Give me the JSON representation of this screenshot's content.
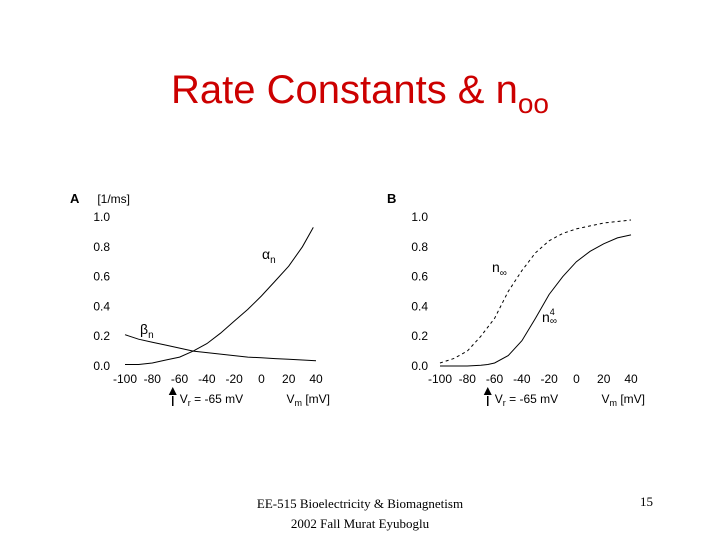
{
  "slide": {
    "title_main": "Rate Constants & n",
    "title_sub": "oo",
    "footer": "EE-515 Bioelectricity & Biomagnetism 2002 Fall Murat Eyuboglu",
    "page_number": "15"
  },
  "chart_data": [
    {
      "type": "line",
      "panel_label": "A",
      "ylabel": "[1/ms]",
      "xlabel_symbol": "V",
      "xlabel_subscript": "m",
      "xlabel_unit": "[mV]",
      "annotation_symbol": "V",
      "annotation_subscript": "r",
      "annotation_value": "= -65 mV",
      "annotation_x": -65,
      "xlim": [
        -100,
        40
      ],
      "ylim": [
        0,
        1.0
      ],
      "x_ticks": [
        -100,
        -80,
        -60,
        -40,
        -20,
        0,
        20,
        40
      ],
      "x_tick_labels": [
        "-100",
        "-80",
        "-60",
        "-40",
        "-20",
        "0",
        "20",
        "40"
      ],
      "y_ticks": [
        0,
        0.2,
        0.4,
        0.6,
        0.8,
        1.0
      ],
      "y_tick_labels": [
        "0.0",
        "0.2",
        "0.4",
        "0.6",
        "0.8",
        "1.0"
      ],
      "series": [
        {
          "name": "αn",
          "label_symbol": "α",
          "label_subscript": "n",
          "style": "solid",
          "x": [
            -100,
            -90,
            -80,
            -70,
            -60,
            -50,
            -40,
            -30,
            -20,
            -10,
            0,
            10,
            20,
            30,
            38
          ],
          "y": [
            0.01,
            0.01,
            0.02,
            0.04,
            0.06,
            0.1,
            0.15,
            0.22,
            0.3,
            0.38,
            0.47,
            0.57,
            0.67,
            0.8,
            0.93
          ]
        },
        {
          "name": "βn",
          "label_symbol": "β",
          "label_subscript": "n",
          "style": "solid",
          "x": [
            -100,
            -90,
            -80,
            -70,
            -60,
            -50,
            -40,
            -30,
            -20,
            -10,
            0,
            10,
            20,
            30,
            40
          ],
          "y": [
            0.21,
            0.18,
            0.16,
            0.14,
            0.12,
            0.1,
            0.09,
            0.08,
            0.07,
            0.06,
            0.055,
            0.05,
            0.045,
            0.04,
            0.035
          ]
        }
      ]
    },
    {
      "type": "line",
      "panel_label": "B",
      "xlabel_symbol": "V",
      "xlabel_subscript": "m",
      "xlabel_unit": "[mV]",
      "annotation_symbol": "V",
      "annotation_subscript": "r",
      "annotation_value": "= -65 mV",
      "annotation_x": -65,
      "xlim": [
        -100,
        40
      ],
      "ylim": [
        0,
        1.0
      ],
      "x_ticks": [
        -100,
        -80,
        -60,
        -40,
        -20,
        0,
        20,
        40
      ],
      "x_tick_labels": [
        "-100",
        "-80",
        "-60",
        "-40",
        "-20",
        "0",
        "20",
        "40"
      ],
      "y_ticks": [
        0,
        0.2,
        0.4,
        0.6,
        0.8,
        1.0
      ],
      "y_tick_labels": [
        "0.0",
        "0.2",
        "0.4",
        "0.6",
        "0.8",
        "1.0"
      ],
      "series": [
        {
          "name": "n∞",
          "label_symbol": "n",
          "label_subscript": "∞",
          "label_superscript": "",
          "style": "dashed",
          "x": [
            -100,
            -90,
            -80,
            -70,
            -60,
            -50,
            -40,
            -30,
            -20,
            -10,
            0,
            10,
            20,
            30,
            40
          ],
          "y": [
            0.02,
            0.05,
            0.1,
            0.2,
            0.32,
            0.5,
            0.64,
            0.76,
            0.84,
            0.89,
            0.92,
            0.94,
            0.96,
            0.97,
            0.98
          ]
        },
        {
          "name": "n∞4",
          "label_symbol": "n",
          "label_subscript": "∞",
          "label_superscript": "4",
          "style": "solid",
          "x": [
            -100,
            -90,
            -80,
            -70,
            -65,
            -60,
            -50,
            -40,
            -30,
            -20,
            -10,
            0,
            10,
            20,
            30,
            40
          ],
          "y": [
            0,
            0,
            0,
            0.005,
            0.01,
            0.02,
            0.07,
            0.17,
            0.32,
            0.48,
            0.6,
            0.7,
            0.77,
            0.82,
            0.86,
            0.88
          ]
        }
      ]
    }
  ]
}
